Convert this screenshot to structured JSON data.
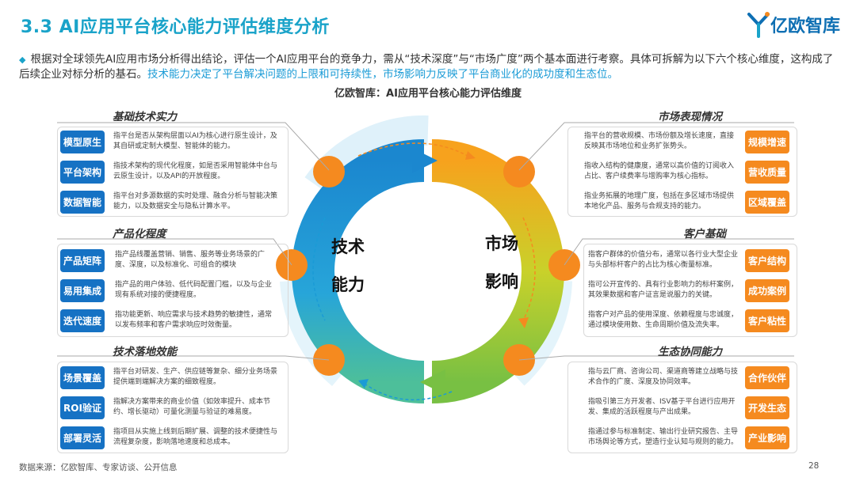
{
  "header": {
    "title": "3.3 AI应用平台核心能力评估维度分析",
    "brand": "亿欧智库"
  },
  "intro": {
    "text": "根据对全球领先AI应用市场分析得出结论，评估一个AI应用平台的竞争力，需从“技术深度”与“市场广度”两个基本面进行考察。具体可拆解为以下六个核心维度，这构成了后续企业对标分析的基石。",
    "highlight": "技术能力决定了平台解决问题的上限和可持续性，市场影响力反映了平台商业化的成功度和生态位。"
  },
  "diagram": {
    "title": "亿欧智库：AI应用平台核心能力评估维度",
    "ring_left_top": "技术",
    "ring_left_bottom": "能力",
    "ring_right_top": "市场",
    "ring_right_bottom": "影响"
  },
  "left_sections": [
    {
      "title": "基础技术实力",
      "items": [
        {
          "label": "模型原生",
          "desc": "指平台是否从架构层面以AI为核心进行原生设计，及其自研或定制大模型、智能体的能力。"
        },
        {
          "label": "平台架构",
          "desc": "指技术架构的现代化程度，如是否采用智能体中台与云原生设计，以及API的开放程度。"
        },
        {
          "label": "数据智能",
          "desc": "指平台对多源数据的实时处理、融合分析与智能决策能力，以及数据安全与隐私计算水平。"
        }
      ]
    },
    {
      "title": "产品化程度",
      "items": [
        {
          "label": "产品矩阵",
          "desc": "指产品线覆盖营销、销售、服务等业务场景的广度、深度，以及标准化、可组合的模块"
        },
        {
          "label": "易用集成",
          "desc": "指产品的用户体验、低代码配置门槛，以及与企业现有系统对接的便捷程度。"
        },
        {
          "label": "迭代速度",
          "desc": "指功能更新、响应需求与技术趋势的敏捷性，通常以发布频率和客户需求响应时效衡量。"
        }
      ]
    },
    {
      "title": "技术落地效能",
      "items": [
        {
          "label": "场景覆盖",
          "desc": "指平台对研发、生产、供应链等复杂、细分业务场景提供端到端解决方案的细致程度。"
        },
        {
          "label": "ROI验证",
          "desc": "指解决方案带来的商业价值（如效率提升、成本节约、增长驱动）可量化测量与验证的难易度。"
        },
        {
          "label": "部署灵活",
          "desc": "指项目从实施上线到后期扩展、调整的技术便捷性与流程复杂度，影响落地速度和总成本。"
        }
      ]
    }
  ],
  "right_sections": [
    {
      "title": "市场表现情况",
      "items": [
        {
          "label": "规模增速",
          "desc": "指平台的营收规模、市场份额及增长速度，直接反映其市场地位和业务扩张势头。"
        },
        {
          "label": "营收质量",
          "desc": "指收入结构的健康度，通常以高价值的订阅收入占比、客户续费率与增购率为核心指标。"
        },
        {
          "label": "区域覆盖",
          "desc": "指业务拓展的地理广度，包括在多区域市场提供本地化产品、服务与合规支持的能力。"
        }
      ]
    },
    {
      "title": "客户基础",
      "items": [
        {
          "label": "客户结构",
          "desc": "指客户群体的价值分布，通常以各行业大型企业与头部标杆客户的占比为核心衡量标准。"
        },
        {
          "label": "成功案例",
          "desc": "指可公开宣传的、具有行业影响力的标杆案例，其效果数据和客户证言是说服力的关键。"
        },
        {
          "label": "客户粘性",
          "desc": "指客户对产品的使用深度、依赖程度与忠诚度，通过模块使用数、生命周期价值及流失率。"
        }
      ]
    },
    {
      "title": "生态协同能力",
      "items": [
        {
          "label": "合作伙伴",
          "desc": "指与云厂商、咨询公司、渠道商等建立战略与技术合作的广度、深度及协同效率。"
        },
        {
          "label": "开发生态",
          "desc": "指吸引第三方开发者、ISV基于平台进行应用开发、集成的活跃程度与产出成果。"
        },
        {
          "label": "产业影响",
          "desc": "指通过参与标准制定、输出行业研究报告、主导市场舆论等方式，塑造行业认知与规则的能力。"
        }
      ]
    }
  ],
  "footer": {
    "source": "数据来源：亿欧智库、专家访谈、公开信息",
    "page": "28"
  },
  "colors": {
    "title": "#1aa3c9",
    "highlight": "#1a9bd6",
    "blue_button": "#1672c4",
    "orange_button": "#f58a1f",
    "ring_blue": "#1a7fc9",
    "ring_green": "#8cc63f",
    "ring_orange": "#f58a1f"
  }
}
